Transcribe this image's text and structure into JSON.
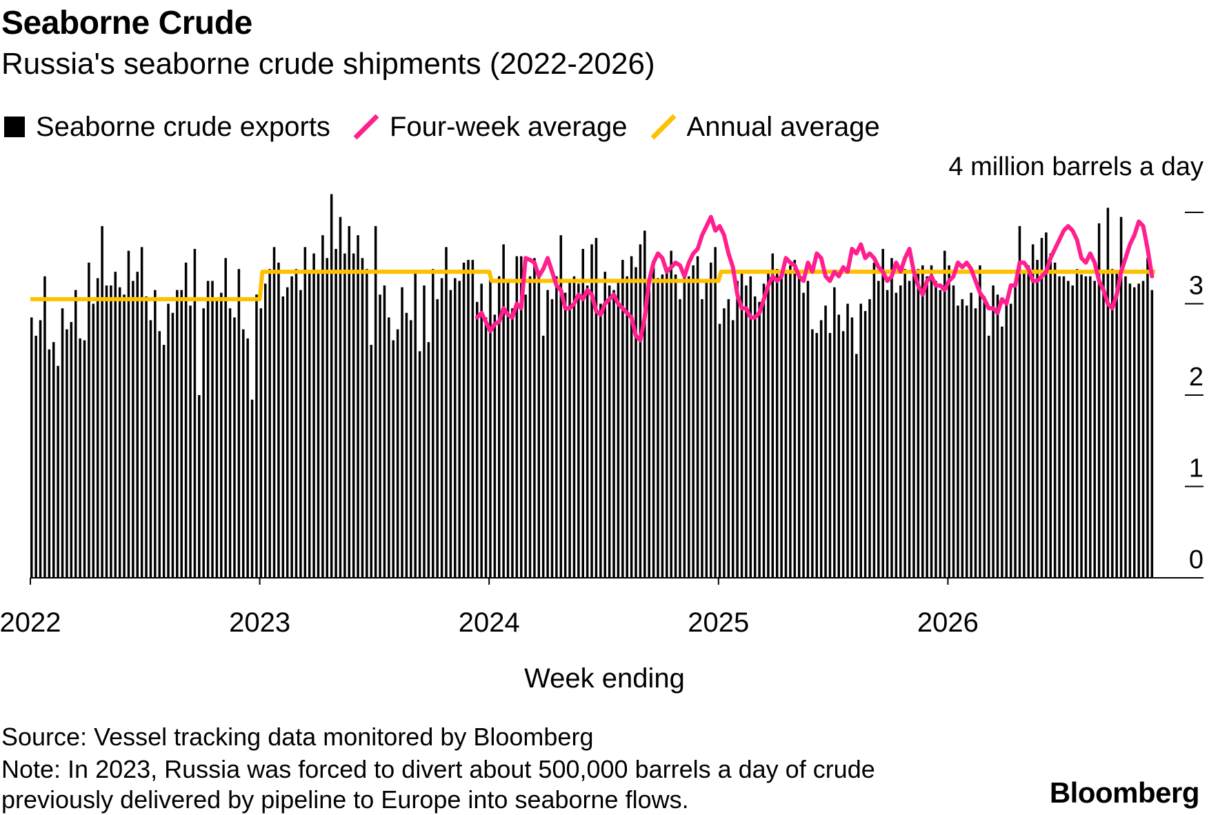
{
  "chart_data": {
    "type": "bar",
    "title": "Seaborne Crude",
    "subtitle": "Russia's seaborne crude shipments (2022-2026)",
    "xlabel": "Week ending",
    "ylabel": "4 million barrels a day",
    "ylim": [
      0,
      4
    ],
    "yticks": [
      0,
      1,
      2,
      3,
      4
    ],
    "ytick_labels": [
      "0",
      "1",
      "2",
      "3",
      ""
    ],
    "xticks": [
      "2022",
      "2023",
      "2024",
      "2025",
      "2026"
    ],
    "legend": [
      {
        "name": "Seaborne crude exports",
        "kind": "bar",
        "color": "#000000"
      },
      {
        "name": "Four-week average",
        "kind": "line",
        "color": "#ff1f8e"
      },
      {
        "name": "Annual average",
        "kind": "line",
        "color": "#ffc000"
      }
    ],
    "series": [
      {
        "name": "Seaborne crude exports",
        "type": "bar",
        "start_year": 2022,
        "values": [
          2.85,
          2.65,
          2.82,
          3.3,
          2.5,
          2.58,
          2.32,
          2.95,
          2.72,
          2.8,
          3.15,
          2.62,
          2.6,
          3.45,
          3.0,
          3.28,
          3.85,
          3.2,
          3.2,
          3.35,
          3.18,
          3.1,
          3.58,
          3.25,
          3.35,
          3.62,
          3.08,
          2.82,
          3.15,
          2.7,
          2.55,
          3.0,
          2.9,
          3.15,
          3.15,
          3.45,
          2.98,
          3.6,
          2.0,
          2.95,
          3.25,
          3.25,
          3.05,
          3.12,
          3.5,
          2.95,
          2.85,
          3.38,
          2.72,
          2.62,
          1.95,
          3.1,
          2.95,
          3.22,
          3.38,
          3.62,
          3.45,
          3.08,
          3.18,
          3.3,
          3.38,
          3.15,
          3.62,
          3.35,
          3.55,
          3.35,
          3.75,
          3.5,
          4.2,
          3.6,
          3.95,
          3.55,
          3.85,
          3.55,
          3.75,
          3.5,
          3.38,
          2.55,
          3.85,
          3.1,
          3.2,
          2.85,
          2.6,
          2.72,
          3.18,
          2.9,
          2.82,
          3.35,
          2.48,
          3.2,
          2.58,
          3.38,
          3.05,
          3.28,
          3.62,
          3.15,
          3.28,
          3.25,
          3.45,
          3.48,
          3.48,
          3.02,
          3.22,
          2.85,
          3.35,
          2.88,
          3.3,
          3.65,
          3.25,
          2.95,
          3.52,
          3.52,
          3.1,
          3.3,
          3.5,
          3.35,
          2.65,
          3.15,
          3.05,
          3.3,
          3.75,
          3.12,
          3.25,
          3.3,
          3.22,
          3.6,
          3.2,
          3.65,
          3.72,
          3.0,
          3.35,
          3.2,
          3.15,
          3.25,
          3.48,
          3.3,
          3.52,
          3.4,
          3.65,
          3.8,
          3.18,
          3.4,
          3.28,
          3.32,
          3.38,
          3.58,
          3.32,
          3.05,
          3.3,
          3.3,
          3.42,
          3.52,
          3.05,
          3.25,
          3.45,
          3.62,
          2.78,
          2.95,
          3.05,
          2.82,
          3.25,
          3.35,
          3.2,
          3.3,
          3.08,
          3.02,
          3.22,
          3.35,
          3.55,
          3.38,
          3.35,
          3.35,
          3.42,
          3.48,
          3.32,
          3.12,
          3.25,
          2.72,
          2.68,
          2.82,
          2.98,
          2.68,
          3.18,
          2.88,
          2.7,
          3.0,
          2.85,
          2.45,
          3.0,
          2.92,
          3.05,
          3.45,
          3.25,
          3.6,
          3.15,
          3.5,
          3.12,
          3.2,
          3.38,
          3.25,
          3.38,
          3.38,
          3.42,
          3.3,
          3.42,
          3.25,
          3.15,
          3.58,
          3.42,
          3.2,
          2.98,
          3.05,
          2.98,
          3.12,
          2.95,
          3.42,
          3.08,
          2.65,
          3.2,
          3.1,
          2.75,
          3.02,
          3.0,
          3.18,
          3.85,
          3.35,
          3.42,
          3.65,
          3.48,
          3.72,
          3.78,
          3.55,
          3.45,
          3.3,
          3.3,
          3.25,
          3.2,
          3.38,
          3.32,
          3.3,
          3.3,
          3.25,
          3.88,
          3.35,
          4.05,
          3.38,
          3.35,
          3.95,
          3.3,
          3.22,
          3.18,
          3.22,
          3.25,
          3.5,
          3.15
        ]
      },
      {
        "name": "Four-week average",
        "type": "line",
        "values": [
          2.85,
          2.9,
          2.8,
          2.7,
          2.78,
          2.8,
          2.95,
          2.88,
          2.85,
          3.0,
          2.95,
          3.5,
          3.48,
          3.45,
          3.3,
          3.38,
          3.5,
          3.35,
          3.2,
          3.15,
          2.95,
          2.95,
          3.0,
          3.1,
          3.05,
          3.15,
          3.1,
          2.92,
          2.88,
          3.0,
          3.05,
          3.1,
          3.0,
          2.95,
          2.9,
          2.85,
          2.65,
          2.6,
          2.85,
          3.25,
          3.45,
          3.55,
          3.5,
          3.35,
          3.4,
          3.45,
          3.42,
          3.3,
          3.45,
          3.55,
          3.6,
          3.75,
          3.85,
          3.95,
          3.8,
          3.85,
          3.75,
          3.55,
          3.4,
          3.1,
          2.95,
          2.95,
          2.85,
          2.85,
          2.9,
          3.05,
          3.2,
          3.3,
          3.25,
          3.3,
          3.5,
          3.45,
          3.42,
          3.3,
          3.25,
          3.45,
          3.35,
          3.55,
          3.5,
          3.3,
          3.25,
          3.35,
          3.3,
          3.4,
          3.35,
          3.6,
          3.55,
          3.65,
          3.5,
          3.55,
          3.5,
          3.4,
          3.35,
          3.25,
          3.3,
          3.45,
          3.35,
          3.5,
          3.6,
          3.35,
          3.2,
          3.1,
          3.25,
          3.3,
          3.2,
          3.2,
          3.15,
          3.25,
          3.3,
          3.45,
          3.4,
          3.45,
          3.38,
          3.25,
          3.12,
          3.05,
          2.95,
          2.95,
          2.9,
          3.05,
          3.0,
          3.2,
          3.2,
          3.45,
          3.45,
          3.38,
          3.25,
          3.25,
          3.3,
          3.35,
          3.5,
          3.6,
          3.7,
          3.8,
          3.85,
          3.8,
          3.7,
          3.5,
          3.45,
          3.55,
          3.45,
          3.25,
          3.15,
          3.0,
          2.95,
          3.1,
          3.35,
          3.5,
          3.65,
          3.75,
          3.9,
          3.85,
          3.6,
          3.3
        ]
      },
      {
        "name": "Annual average",
        "type": "line",
        "segments": [
          {
            "year": "2022",
            "value": 3.05
          },
          {
            "year": "2023",
            "value": 3.35
          },
          {
            "year": "2024",
            "value": 3.25
          },
          {
            "year": "2025",
            "value": 3.35
          },
          {
            "year": "2026",
            "value": 3.35
          }
        ]
      }
    ],
    "annotations": [
      "Note: In 2023, Russia was forced to divert about 500,000 barrels a day of crude previously delivered by pipeline to Europe into seaborne flows."
    ]
  },
  "source": "Source: Vessel tracking data monitored by Bloomberg",
  "note": "Note: In 2023, Russia was forced to divert about 500,000 barrels a day of crude previously delivered by pipeline to Europe into seaborne flows.",
  "brand": "Bloomberg",
  "colors": {
    "bars": "#000000",
    "four_week": "#ff1f8e",
    "annual": "#ffc000"
  }
}
